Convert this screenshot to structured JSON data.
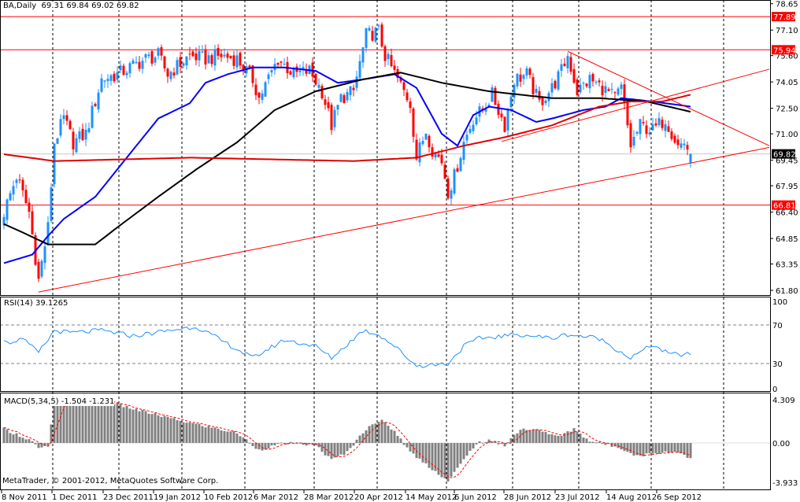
{
  "header": {
    "symbol_tf": "BA,Daily",
    "ohlc": "69.31 69.84 69.02 69.82"
  },
  "rsi_label": "RSI(14) 39.1265",
  "macd_label": "MACD(5,34,5) -1.504 -1.231",
  "copyright": "MetaTrader, © 2001-2012, MetaQuotes Software Corp.",
  "colors": {
    "bull": "#1e90ff",
    "bear": "#ff0000",
    "ma_fast": "#0000ff",
    "ma_mid": "#000000",
    "ma_slow": "#e00000",
    "trend": "#ff0000",
    "rsi": "#1e90ff",
    "macd_hist": "#808080",
    "macd_signal": "#ff0000"
  },
  "chart_data": [
    {
      "type": "candlestick",
      "title": "BA,Daily",
      "last_bar": {
        "open": 69.31,
        "high": 69.84,
        "low": 69.02,
        "close": 69.82
      },
      "ylim": [
        61.8,
        78.65
      ],
      "y_ticks": [
        "78.65",
        "77.10",
        "75.60",
        "74.05",
        "72.50",
        "71.00",
        "69.45",
        "67.95",
        "66.40",
        "64.85",
        "63.35",
        "61.80"
      ],
      "x_ticks": [
        "8 Nov 2011",
        "1 Dec 2011",
        "23 Dec 2011",
        "19 Jan 2012",
        "10 Feb 2012",
        "6 Mar 2012",
        "28 Mar 2012",
        "20 Apr 2012",
        "14 May 2012",
        "6 Jun 2012",
        "28 Jun 2012",
        "23 Jul 2012",
        "14 Aug 2012",
        "6 Sep 2012"
      ],
      "bars": 219,
      "close_keypoints": [
        [
          0,
          66.4
        ],
        [
          4,
          68.5
        ],
        [
          8,
          66.4
        ],
        [
          11,
          62.4
        ],
        [
          14,
          65.5
        ],
        [
          16,
          70.5
        ],
        [
          19,
          71.9
        ],
        [
          22,
          70.5
        ],
        [
          26,
          71.0
        ],
        [
          31,
          74.2
        ],
        [
          36,
          74.5
        ],
        [
          40,
          74.9
        ],
        [
          45,
          75.4
        ],
        [
          49,
          75.6
        ],
        [
          52,
          74.5
        ],
        [
          59,
          75.6
        ],
        [
          64,
          75.4
        ],
        [
          69,
          75.6
        ],
        [
          74,
          75.4
        ],
        [
          79,
          74.2
        ],
        [
          81,
          73.1
        ],
        [
          87,
          75.4
        ],
        [
          92,
          74.5
        ],
        [
          97,
          74.7
        ],
        [
          101,
          73.5
        ],
        [
          104,
          71.5
        ],
        [
          107,
          73.1
        ],
        [
          111,
          73.5
        ],
        [
          115,
          76.8
        ],
        [
          119,
          77.0
        ],
        [
          121,
          75.6
        ],
        [
          125,
          74.2
        ],
        [
          129,
          72.8
        ],
        [
          131,
          69.6
        ],
        [
          134,
          71.2
        ],
        [
          136,
          70.1
        ],
        [
          139,
          69.4
        ],
        [
          141,
          67.6
        ],
        [
          143,
          68.5
        ],
        [
          146,
          70.5
        ],
        [
          149,
          71.9
        ],
        [
          152,
          72.4
        ],
        [
          155,
          73.3
        ],
        [
          159,
          71.5
        ],
        [
          162,
          74.2
        ],
        [
          166,
          74.5
        ],
        [
          170,
          72.8
        ],
        [
          174,
          73.7
        ],
        [
          177,
          74.7
        ],
        [
          179,
          75.6
        ],
        [
          182,
          73.5
        ],
        [
          186,
          74.2
        ],
        [
          190,
          73.7
        ],
        [
          194,
          73.1
        ],
        [
          196,
          73.7
        ],
        [
          199,
          70.3
        ],
        [
          202,
          71.5
        ],
        [
          206,
          71.2
        ],
        [
          210,
          71.9
        ],
        [
          214,
          70.3
        ],
        [
          216,
          70.5
        ],
        [
          218,
          69.82
        ]
      ],
      "moving_averages": [
        {
          "name": "MA fast (blue)",
          "points": [
            [
              0,
              63.4
            ],
            [
              9,
              63.9
            ],
            [
              14,
              65.0
            ],
            [
              19,
              66.0
            ],
            [
              29,
              67.3
            ],
            [
              39,
              69.6
            ],
            [
              49,
              71.9
            ],
            [
              59,
              72.8
            ],
            [
              64,
              74.0
            ],
            [
              71,
              74.5
            ],
            [
              79,
              74.9
            ],
            [
              89,
              74.9
            ],
            [
              99,
              74.7
            ],
            [
              106,
              74.0
            ],
            [
              114,
              74.2
            ],
            [
              124,
              74.5
            ],
            [
              131,
              73.7
            ],
            [
              139,
              71.0
            ],
            [
              144,
              70.3
            ],
            [
              149,
              72.1
            ],
            [
              154,
              72.6
            ],
            [
              161,
              72.4
            ],
            [
              169,
              71.7
            ],
            [
              174,
              71.9
            ],
            [
              184,
              72.4
            ],
            [
              191,
              72.6
            ],
            [
              196,
              73.1
            ],
            [
              206,
              72.9
            ],
            [
              218,
              72.6
            ]
          ]
        },
        {
          "name": "MA mid (black)",
          "points": [
            [
              0,
              65.7
            ],
            [
              6,
              65.2
            ],
            [
              14,
              64.5
            ],
            [
              29,
              64.5
            ],
            [
              36,
              65.5
            ],
            [
              49,
              67.3
            ],
            [
              61,
              68.9
            ],
            [
              74,
              70.5
            ],
            [
              86,
              72.4
            ],
            [
              99,
              73.5
            ],
            [
              114,
              74.2
            ],
            [
              126,
              74.6
            ],
            [
              139,
              74.0
            ],
            [
              154,
              73.5
            ],
            [
              174,
              73.1
            ],
            [
              189,
              73.1
            ],
            [
              204,
              72.9
            ],
            [
              218,
              72.3
            ]
          ]
        },
        {
          "name": "MA slow (red)",
          "points": [
            [
              0,
              69.8
            ],
            [
              16,
              69.4
            ],
            [
              59,
              69.6
            ],
            [
              111,
              69.4
            ],
            [
              131,
              69.6
            ],
            [
              146,
              70.3
            ],
            [
              159,
              70.8
            ],
            [
              174,
              71.5
            ],
            [
              189,
              72.6
            ],
            [
              199,
              72.9
            ],
            [
              209,
              72.9
            ],
            [
              218,
              73.3
            ]
          ]
        }
      ],
      "trendlines": [
        [
          [
            11,
            61.7
          ],
          [
            243,
            70.2
          ]
        ],
        [
          [
            179,
            75.85
          ],
          [
            243,
            70.3
          ]
        ],
        [
          [
            158,
            70.55
          ],
          [
            243,
            74.8
          ]
        ]
      ],
      "hlines": [
        {
          "value": 77.89,
          "label": "77.89"
        },
        {
          "value": 75.94,
          "label": "75.94"
        },
        {
          "value": 66.81,
          "label": "66.81"
        }
      ],
      "bid_line": {
        "value": 69.82,
        "label": "69.82"
      }
    },
    {
      "type": "line",
      "title": "RSI(14) 39.1265",
      "ylim": [
        0,
        100
      ],
      "y_ticks": [
        {
          "v": 100,
          "t": "100"
        },
        {
          "v": 70,
          "t": "70"
        },
        {
          "v": 30,
          "t": "30"
        },
        {
          "v": 0,
          "t": "0"
        }
      ],
      "levels": [
        70,
        30
      ],
      "keypoints": [
        [
          0,
          56.1
        ],
        [
          3,
          50.4
        ],
        [
          5,
          57.8
        ],
        [
          10,
          43.9
        ],
        [
          11,
          41.4
        ],
        [
          14,
          54.5
        ],
        [
          16,
          64.3
        ],
        [
          21,
          61.8
        ],
        [
          31,
          64.3
        ],
        [
          41,
          58.6
        ],
        [
          61,
          68.4
        ],
        [
          79,
          35.7
        ],
        [
          89,
          54.5
        ],
        [
          99,
          48.0
        ],
        [
          104,
          35.7
        ],
        [
          114,
          64.3
        ],
        [
          119,
          60.2
        ],
        [
          124,
          48.0
        ],
        [
          131,
          27.6
        ],
        [
          141,
          30.0
        ],
        [
          146,
          48.0
        ],
        [
          151,
          56.1
        ],
        [
          164,
          60.2
        ],
        [
          174,
          56.1
        ],
        [
          179,
          60.2
        ],
        [
          189,
          56.1
        ],
        [
          199,
          35.7
        ],
        [
          206,
          49.6
        ],
        [
          211,
          39.8
        ],
        [
          218,
          39.13
        ]
      ]
    },
    {
      "type": "bar",
      "title": "MACD(5,34,5) -1.504 -1.231",
      "ylim": [
        -3.933,
        4.309
      ],
      "y_ticks": [
        {
          "v": 4.309,
          "t": "4.309"
        },
        {
          "v": 0,
          "t": "0.00"
        },
        {
          "v": -3.933,
          "t": "-3.933"
        }
      ],
      "hist_keypoints": [
        [
          0,
          1.4
        ],
        [
          9,
          0.2
        ],
        [
          11,
          -0.6
        ],
        [
          14,
          -0.3
        ],
        [
          16,
          3.8
        ],
        [
          31,
          4.3
        ],
        [
          41,
          3.4
        ],
        [
          56,
          2.2
        ],
        [
          74,
          1.0
        ],
        [
          81,
          -0.7
        ],
        [
          89,
          0.0
        ],
        [
          99,
          -0.2
        ],
        [
          104,
          -1.7
        ],
        [
          109,
          -0.9
        ],
        [
          116,
          1.8
        ],
        [
          120,
          2.2
        ],
        [
          124,
          1.2
        ],
        [
          129,
          -0.9
        ],
        [
          134,
          -2.1
        ],
        [
          141,
          -3.8
        ],
        [
          146,
          -1.7
        ],
        [
          150,
          0.0
        ],
        [
          154,
          0.2
        ],
        [
          159,
          -0.2
        ],
        [
          164,
          1.4
        ],
        [
          171,
          1.2
        ],
        [
          176,
          0.6
        ],
        [
          181,
          1.4
        ],
        [
          186,
          0.2
        ],
        [
          196,
          -0.5
        ],
        [
          201,
          -1.3
        ],
        [
          209,
          -0.9
        ],
        [
          214,
          -0.9
        ],
        [
          218,
          -1.504
        ]
      ],
      "signal_last": -1.231
    }
  ]
}
